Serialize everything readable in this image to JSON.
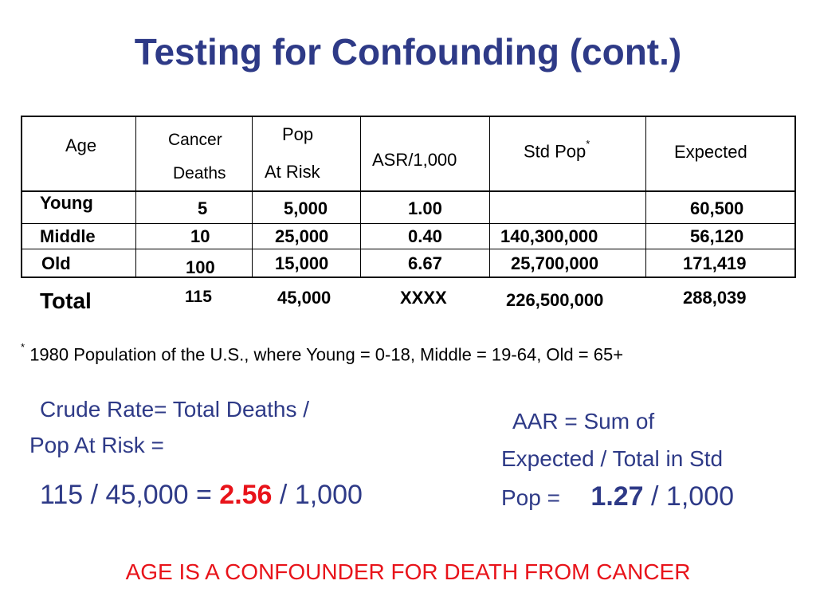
{
  "title": "Testing for Confounding (cont.)",
  "table": {
    "headers": {
      "age": "Age",
      "cancer_1": "Cancer",
      "cancer_2": "Deaths",
      "pop_1": "Pop",
      "pop_2": "At Risk",
      "asr": "ASR/1,000",
      "std_pop": "Std Pop",
      "std_pop_mark": "*",
      "expected": "Expected"
    },
    "rows": [
      {
        "age": "Young",
        "deaths": "5",
        "pop": "5,000",
        "asr": "1.00",
        "std_pop": "",
        "expected": "60,500"
      },
      {
        "age": "Middle",
        "deaths": "10",
        "pop": "25,000",
        "asr": "0.40",
        "std_pop": "140,300,000",
        "expected": "56,120"
      },
      {
        "age": "Old",
        "deaths": "100",
        "pop": "15,000",
        "asr": "6.67",
        "std_pop": "25,700,000",
        "expected": "171,419"
      }
    ],
    "total": {
      "age": "Total",
      "deaths": "115",
      "pop": "45,000",
      "asr": "XXXX",
      "std_pop": "226,500,000",
      "expected": "288,039"
    }
  },
  "footnote": {
    "mark": "*",
    "text": "1980 Population of the U.S., where Young = 0-18, Middle = 19-64, Old = 65+"
  },
  "crude": {
    "line1": "Crude Rate= Total Deaths /",
    "line2": "Pop At Risk =",
    "calc_prefix": "115 / 45,000 = ",
    "calc_value": "2.56",
    "calc_suffix": " / 1,000"
  },
  "aar": {
    "line1": "AAR =  Sum of",
    "line2": "Expected / Total in Std",
    "line3_prefix": "Pop  =",
    "value": "1.27",
    "suffix": " / 1,000"
  },
  "conclusion": "AGE IS A CONFOUNDER FOR DEATH FROM CANCER",
  "colors": {
    "title": "#2e3a87",
    "highlight": "#e8131a"
  }
}
